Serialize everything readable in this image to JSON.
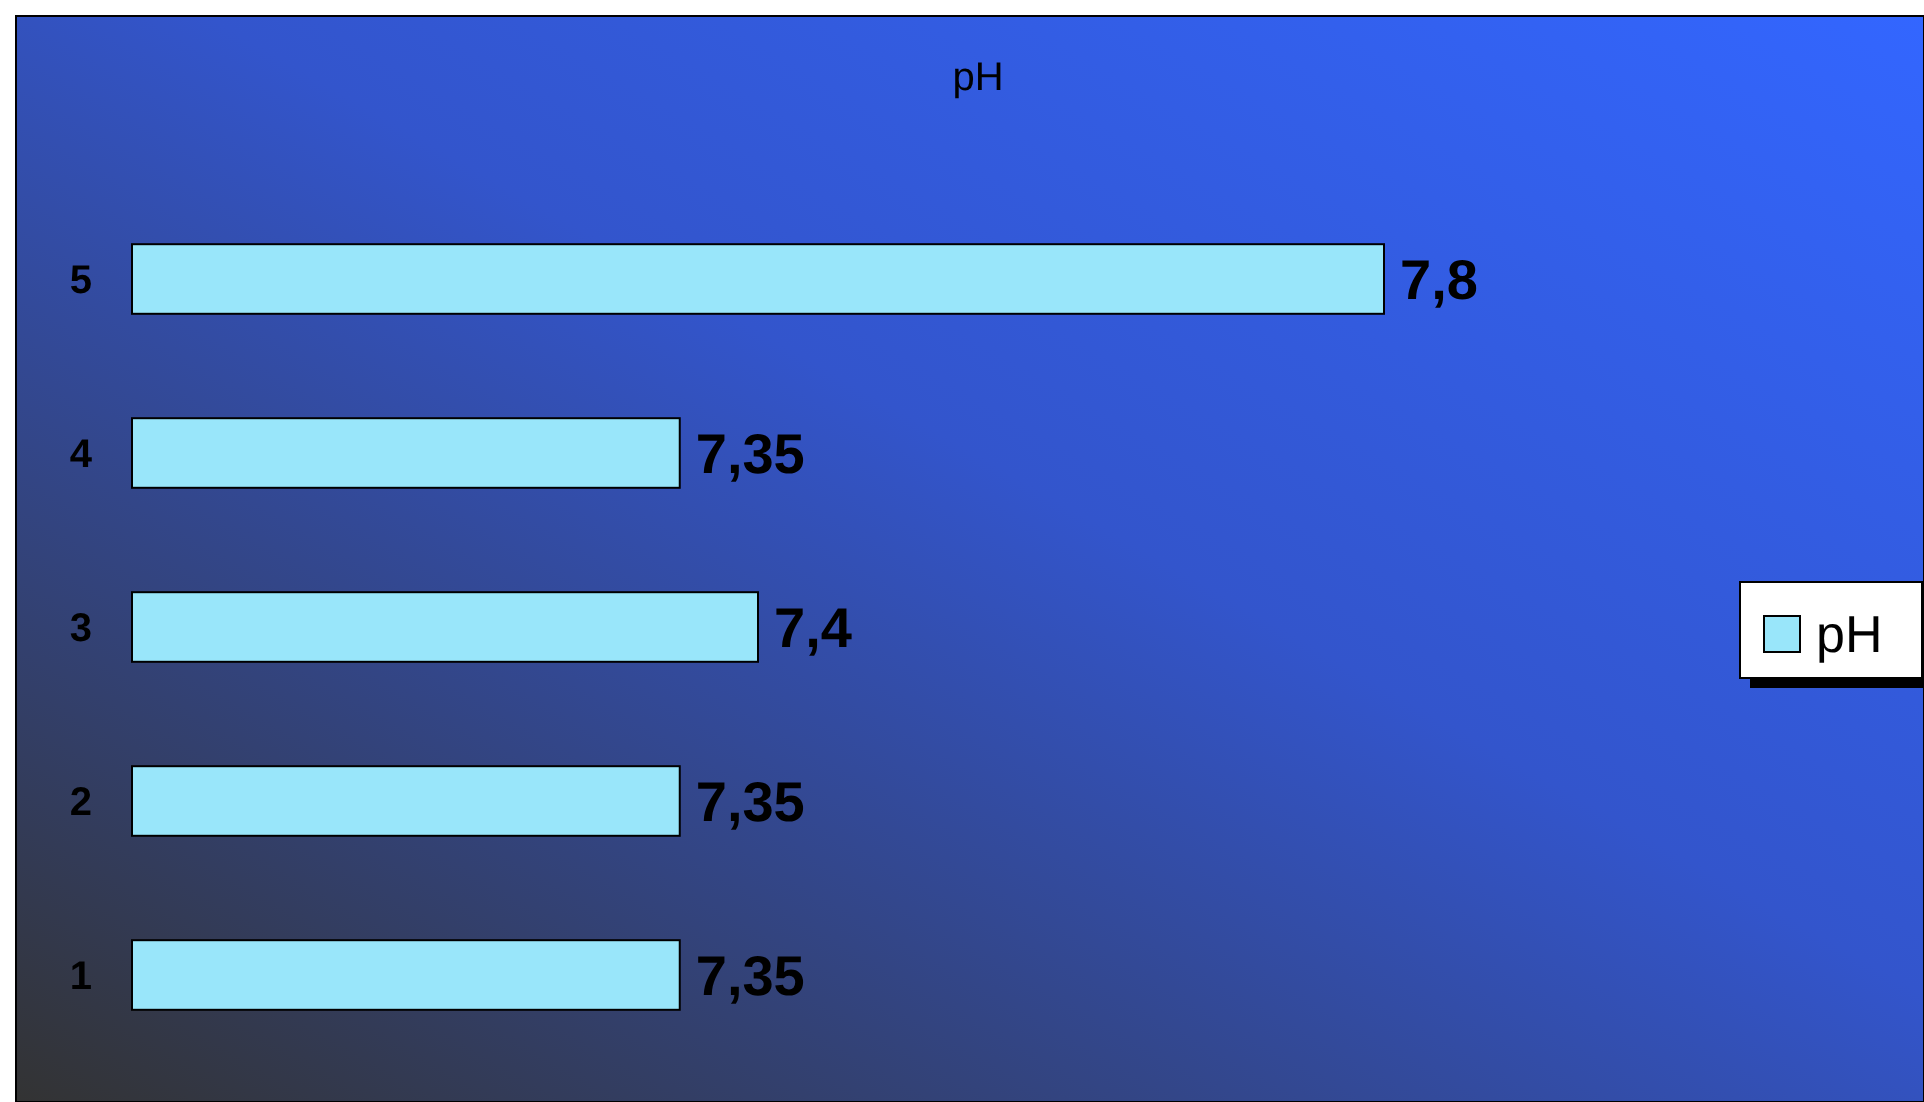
{
  "chart_data": {
    "type": "bar",
    "title": "pH",
    "orientation": "horizontal",
    "categories": [
      "5",
      "4",
      "3",
      "2",
      "1"
    ],
    "series": [
      {
        "name": "pH",
        "color": "#99e6fa",
        "values": [
          7.8,
          7.35,
          7.4,
          7.35,
          7.35
        ],
        "value_labels": [
          "7,8",
          "7,35",
          "7,4",
          "7,35",
          "7,35"
        ]
      }
    ],
    "xlim": [
      7,
      7.8
    ],
    "tick_labels": "y",
    "legend": "right"
  }
}
